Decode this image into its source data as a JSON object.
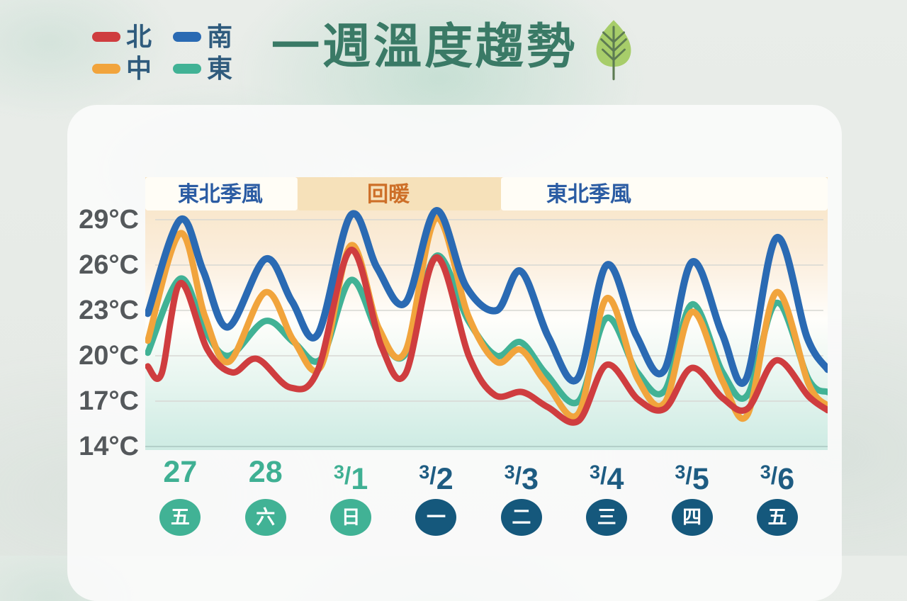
{
  "title": "一週溫度趨勢",
  "legend": {
    "items": [
      {
        "label": "北",
        "region": "north",
        "color": "#cf3d3f"
      },
      {
        "label": "南",
        "region": "south",
        "color": "#2a6ab3"
      },
      {
        "label": "中",
        "region": "central",
        "color": "#f1a43c"
      },
      {
        "label": "東",
        "region": "east",
        "color": "#41b295"
      }
    ]
  },
  "colors": {
    "north": "#cf3d3f",
    "central": "#f1a43c",
    "south": "#2a6ab3",
    "east": "#41b295",
    "title": "#3a7a66",
    "legend_text": "#2f5b7d",
    "ylabel": "#54585b",
    "grid": "#d7d8d3",
    "baseline": "#b3cfc9",
    "banner_monsoon_bg": "#fffdf6",
    "banner_monsoon_text": "#2b5ca3",
    "banner_warm_bg": "#f6e1ba",
    "banner_warm_text": "#cd6f28",
    "tick_teal": "#3fb093",
    "tick_navy": "#1e5c82",
    "badge_teal": "#41b295",
    "badge_navy": "#15587c",
    "leaf_fill": "#a7cd6a",
    "leaf_vein": "#5d7b52"
  },
  "plot_gradient": [
    [
      "0%",
      "#f7e3c2"
    ],
    [
      "30%",
      "#fbeedd"
    ],
    [
      "52%",
      "#fffefb"
    ],
    [
      "68%",
      "#eef8f3"
    ],
    [
      "100%",
      "#cdebe3"
    ]
  ],
  "chart_data": {
    "type": "line",
    "title": "一週溫度趨勢",
    "y_axis": {
      "unit": "°C",
      "ticks": [
        29,
        26,
        23,
        20,
        17,
        14
      ],
      "min": 14,
      "max": 29,
      "grid": true
    },
    "x_axis": {
      "range_days": [
        0,
        8
      ],
      "days": [
        {
          "prefix": "",
          "num": "27",
          "weekday": "五",
          "theme": "teal",
          "t": 0.41
        },
        {
          "prefix": "",
          "num": "28",
          "weekday": "六",
          "theme": "teal",
          "t": 1.41
        },
        {
          "prefix": "3",
          "num": "1",
          "weekday": "日",
          "theme": "teal",
          "t": 2.41
        },
        {
          "prefix": "3",
          "num": "2",
          "weekday": "一",
          "theme": "navy",
          "t": 3.41
        },
        {
          "prefix": "3",
          "num": "3",
          "weekday": "二",
          "theme": "navy",
          "t": 4.41
        },
        {
          "prefix": "3",
          "num": "4",
          "weekday": "三",
          "theme": "navy",
          "t": 5.41
        },
        {
          "prefix": "3",
          "num": "5",
          "weekday": "四",
          "theme": "navy",
          "t": 6.41
        },
        {
          "prefix": "3",
          "num": "6",
          "weekday": "五",
          "theme": "navy",
          "t": 7.41
        }
      ]
    },
    "annotations": [
      {
        "label": "東北季風",
        "style": "monsoon",
        "from": 0,
        "to": 1.785,
        "label_t": 0.88
      },
      {
        "label": "回暖",
        "style": "warm",
        "from": 1.785,
        "to": 4.17,
        "label_t": 2.85
      },
      {
        "label": "東北季風",
        "style": "monsoon",
        "from": 4.17,
        "to": 8,
        "label_t": 5.2
      }
    ],
    "series": [
      {
        "name": "東",
        "region": "east",
        "color": "#41b295",
        "width": 9,
        "points": [
          [
            0.03,
            20.2
          ],
          [
            0.41,
            25.1
          ],
          [
            0.7,
            21.7
          ],
          [
            0.98,
            20.0
          ],
          [
            1.41,
            22.3
          ],
          [
            1.74,
            20.9
          ],
          [
            2.06,
            19.8
          ],
          [
            2.41,
            25.0
          ],
          [
            2.74,
            21.4
          ],
          [
            3.05,
            20.1
          ],
          [
            3.41,
            26.6
          ],
          [
            3.79,
            22.3
          ],
          [
            4.12,
            20.0
          ],
          [
            4.4,
            20.9
          ],
          [
            4.7,
            18.8
          ],
          [
            5.08,
            17.0
          ],
          [
            5.41,
            22.5
          ],
          [
            5.77,
            18.9
          ],
          [
            6.09,
            17.7
          ],
          [
            6.41,
            23.4
          ],
          [
            6.77,
            18.9
          ],
          [
            7.06,
            17.4
          ],
          [
            7.4,
            23.5
          ],
          [
            7.78,
            18.4
          ],
          [
            8.0,
            17.6
          ]
        ]
      },
      {
        "name": "中",
        "region": "central",
        "color": "#f1a43c",
        "width": 9,
        "points": [
          [
            0.03,
            21.0
          ],
          [
            0.41,
            28.1
          ],
          [
            0.7,
            22.6
          ],
          [
            0.98,
            19.6
          ],
          [
            1.41,
            24.2
          ],
          [
            1.74,
            21.0
          ],
          [
            2.06,
            19.3
          ],
          [
            2.41,
            27.3
          ],
          [
            2.74,
            21.8
          ],
          [
            3.05,
            20.3
          ],
          [
            3.41,
            29.1
          ],
          [
            3.79,
            22.6
          ],
          [
            4.12,
            19.6
          ],
          [
            4.4,
            20.4
          ],
          [
            4.7,
            18.2
          ],
          [
            5.08,
            16.2
          ],
          [
            5.41,
            23.8
          ],
          [
            5.77,
            18.5
          ],
          [
            6.09,
            16.9
          ],
          [
            6.41,
            22.9
          ],
          [
            6.77,
            18.3
          ],
          [
            7.06,
            16.1
          ],
          [
            7.4,
            24.2
          ],
          [
            7.78,
            18.1
          ],
          [
            8.0,
            16.7
          ]
        ]
      },
      {
        "name": "北",
        "region": "north",
        "color": "#cf3d3f",
        "width": 9,
        "points": [
          [
            0.03,
            19.3
          ],
          [
            0.19,
            18.8
          ],
          [
            0.41,
            24.8
          ],
          [
            0.73,
            20.4
          ],
          [
            1.02,
            18.9
          ],
          [
            1.31,
            19.8
          ],
          [
            1.7,
            17.9
          ],
          [
            2.02,
            19.0
          ],
          [
            2.41,
            27.0
          ],
          [
            2.77,
            20.6
          ],
          [
            3.05,
            18.8
          ],
          [
            3.41,
            26.5
          ],
          [
            3.8,
            19.9
          ],
          [
            4.1,
            17.4
          ],
          [
            4.42,
            17.6
          ],
          [
            4.72,
            16.6
          ],
          [
            5.08,
            15.7
          ],
          [
            5.41,
            19.4
          ],
          [
            5.78,
            17.1
          ],
          [
            6.09,
            16.5
          ],
          [
            6.41,
            19.2
          ],
          [
            6.77,
            17.2
          ],
          [
            7.06,
            16.5
          ],
          [
            7.4,
            19.7
          ],
          [
            7.78,
            17.3
          ],
          [
            8.0,
            16.4
          ]
        ]
      },
      {
        "name": "南",
        "region": "south",
        "color": "#2a6ab3",
        "width": 10,
        "points": [
          [
            0.03,
            22.8
          ],
          [
            0.41,
            29.0
          ],
          [
            0.68,
            25.6
          ],
          [
            0.97,
            21.9
          ],
          [
            1.41,
            26.4
          ],
          [
            1.72,
            23.6
          ],
          [
            2.02,
            21.4
          ],
          [
            2.41,
            29.3
          ],
          [
            2.72,
            25.8
          ],
          [
            3.05,
            23.5
          ],
          [
            3.41,
            29.6
          ],
          [
            3.76,
            24.6
          ],
          [
            4.12,
            23.0
          ],
          [
            4.4,
            25.6
          ],
          [
            4.73,
            21.2
          ],
          [
            5.07,
            18.5
          ],
          [
            5.41,
            26.0
          ],
          [
            5.76,
            21.3
          ],
          [
            6.08,
            19.0
          ],
          [
            6.41,
            26.2
          ],
          [
            6.76,
            21.5
          ],
          [
            7.04,
            18.4
          ],
          [
            7.4,
            27.8
          ],
          [
            7.76,
            21.2
          ],
          [
            8.0,
            19.1
          ]
        ]
      }
    ]
  }
}
